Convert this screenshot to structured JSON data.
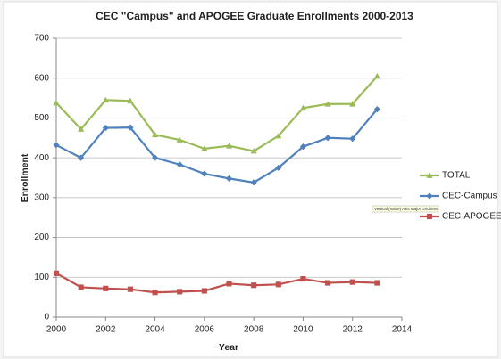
{
  "chart_data": {
    "type": "line",
    "title": "CEC \"Campus\" and APOGEE Graduate Enrollments 2000-2013",
    "x_label": "Year",
    "y_label": "Enrollment",
    "annotation": "Vertical (Value) Axis Major Gridlines",
    "x": [
      2000,
      2001,
      2002,
      2003,
      2004,
      2005,
      2006,
      2007,
      2008,
      2009,
      2010,
      2011,
      2012,
      2013
    ],
    "series": [
      {
        "name": "TOTAL",
        "color": "#9bbb59",
        "marker": "triangle",
        "values": [
          538,
          472,
          545,
          543,
          458,
          445,
          423,
          430,
          417,
          455,
          525,
          535,
          535,
          605
        ]
      },
      {
        "name": "CEC-Campus",
        "color": "#4f81bd",
        "marker": "diamond",
        "values": [
          432,
          400,
          475,
          476,
          400,
          383,
          360,
          348,
          338,
          375,
          428,
          450,
          448,
          522
        ]
      },
      {
        "name": "CEC-APOGEE",
        "color": "#c0504d",
        "marker": "square",
        "values": [
          110,
          75,
          72,
          70,
          62,
          64,
          66,
          84,
          80,
          82,
          96,
          86,
          88,
          86
        ]
      }
    ],
    "xlim": [
      2000,
      2014
    ],
    "xticks": [
      2000,
      2002,
      2004,
      2006,
      2008,
      2010,
      2012,
      2014
    ],
    "ylim": [
      0,
      700
    ],
    "yticks": [
      0,
      100,
      200,
      300,
      400,
      500,
      600,
      700
    ],
    "grid": true,
    "legend": "right"
  }
}
